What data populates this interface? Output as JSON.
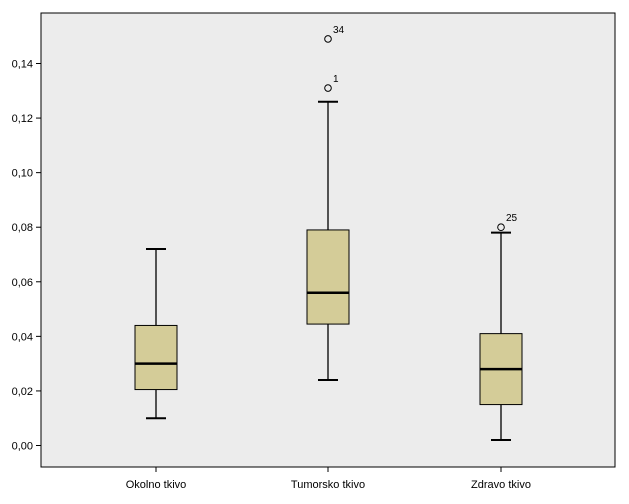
{
  "chart_data": {
    "type": "boxplot",
    "title": "",
    "xlabel": "",
    "ylabel": "",
    "ylim": [
      -0.008,
      0.158
    ],
    "grid": false,
    "y_ticks": [
      0.0,
      0.02,
      0.04,
      0.06,
      0.08,
      0.1,
      0.12,
      0.14
    ],
    "y_tick_labels": [
      "0,00",
      "0,02",
      "0,04",
      "0,06",
      "0,08",
      "0,10",
      "0,12",
      "0,14"
    ],
    "categories": [
      "Okolno tkivo",
      "Tumorsko tkivo",
      "Zdravo tkivo"
    ],
    "box_color": "#d4cc98",
    "background_color": "#ececec",
    "boxes": [
      {
        "category": "Okolno tkivo",
        "whisker_low": 0.01,
        "q1": 0.0205,
        "median": 0.03,
        "q3": 0.044,
        "whisker_high": 0.072,
        "outliers": []
      },
      {
        "category": "Tumorsko tkivo",
        "whisker_low": 0.024,
        "q1": 0.0445,
        "median": 0.056,
        "q3": 0.079,
        "whisker_high": 0.126,
        "outliers": [
          {
            "value": 0.149,
            "label": "34"
          },
          {
            "value": 0.131,
            "label": "1"
          }
        ]
      },
      {
        "category": "Zdravo tkivo",
        "whisker_low": 0.002,
        "q1": 0.015,
        "median": 0.028,
        "q3": 0.041,
        "whisker_high": 0.078,
        "outliers": [
          {
            "value": 0.08,
            "label": "25"
          }
        ]
      }
    ]
  }
}
